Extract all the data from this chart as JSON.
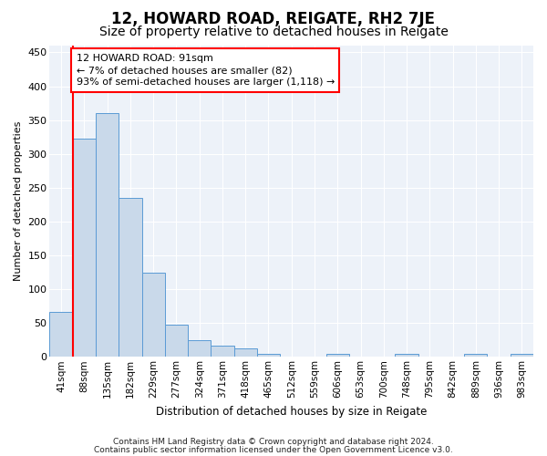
{
  "title": "12, HOWARD ROAD, REIGATE, RH2 7JE",
  "subtitle": "Size of property relative to detached houses in Reigate",
  "xlabel": "Distribution of detached houses by size in Reigate",
  "ylabel": "Number of detached properties",
  "footnote1": "Contains HM Land Registry data © Crown copyright and database right 2024.",
  "footnote2": "Contains public sector information licensed under the Open Government Licence v3.0.",
  "bar_labels": [
    "41sqm",
    "88sqm",
    "135sqm",
    "182sqm",
    "229sqm",
    "277sqm",
    "324sqm",
    "371sqm",
    "418sqm",
    "465sqm",
    "512sqm",
    "559sqm",
    "606sqm",
    "653sqm",
    "700sqm",
    "748sqm",
    "795sqm",
    "842sqm",
    "889sqm",
    "936sqm",
    "983sqm"
  ],
  "bar_values": [
    67,
    322,
    360,
    235,
    125,
    48,
    25,
    17,
    13,
    5,
    0,
    0,
    4,
    0,
    0,
    4,
    0,
    0,
    4,
    0,
    4
  ],
  "bar_color": "#c9d9ea",
  "bar_edgecolor": "#5b9bd5",
  "red_line_x": 0.5,
  "annotation_line1": "12 HOWARD ROAD: 91sqm",
  "annotation_line2": "← 7% of detached houses are smaller (82)",
  "annotation_line3": "93% of semi-detached houses are larger (1,118) →",
  "ylim": [
    0,
    460
  ],
  "yticks": [
    0,
    50,
    100,
    150,
    200,
    250,
    300,
    350,
    400,
    450
  ],
  "background_color": "#edf2f9",
  "grid_color": "#ffffff",
  "title_fontsize": 12,
  "subtitle_fontsize": 10,
  "annotation_fontsize": 8,
  "tick_fontsize": 7.5,
  "ylabel_fontsize": 8,
  "xlabel_fontsize": 8.5
}
